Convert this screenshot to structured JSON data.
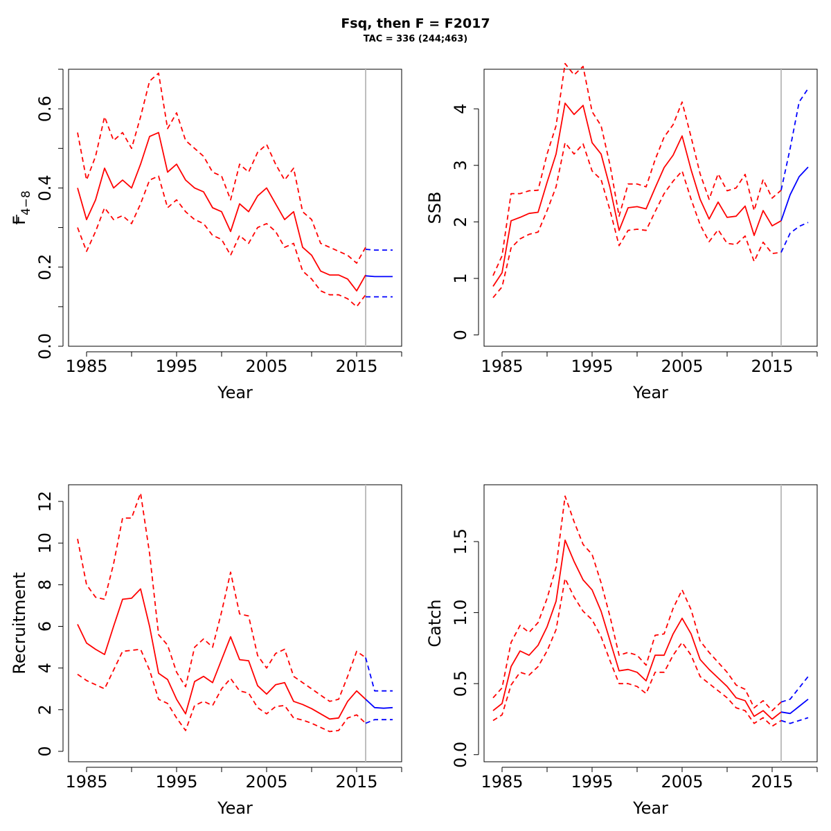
{
  "title": "Fsq, then F = F2017",
  "subtitle": "TAC = 336 (244;463)",
  "colors": {
    "historic": "#ff0000",
    "forecast": "#0000ff",
    "divider": "#bebebe",
    "axis": "#000000"
  },
  "chart_data": [
    {
      "type": "line",
      "id": "fbar",
      "ylabel": "F",
      "ylabel_sub": "4−8",
      "ylabel_bar": true,
      "xlabel": "Year",
      "xlim": [
        1983,
        2020
      ],
      "ylim": [
        0,
        0.7
      ],
      "xticks": [
        1985,
        1995,
        2005,
        2015
      ],
      "xticks_minor": [
        1990,
        2000,
        2010,
        2020
      ],
      "yticks": [
        0.0,
        0.2,
        0.4,
        0.6
      ],
      "yticks_minor": [
        0.1,
        0.3,
        0.5,
        0.7
      ],
      "ytick_labels": [
        "0.0",
        "0.2",
        "0.4",
        "0.6"
      ],
      "divider_x": 2016,
      "x": [
        1984,
        1985,
        1986,
        1987,
        1988,
        1989,
        1990,
        1991,
        1992,
        1993,
        1994,
        1995,
        1996,
        1997,
        1998,
        1999,
        2000,
        2001,
        2002,
        2003,
        2004,
        2005,
        2006,
        2007,
        2008,
        2009,
        2010,
        2011,
        2012,
        2013,
        2014,
        2015,
        2016
      ],
      "series": [
        {
          "line": "solid",
          "color": "historic",
          "values": [
            0.4,
            0.32,
            0.37,
            0.45,
            0.4,
            0.42,
            0.4,
            0.46,
            0.53,
            0.54,
            0.44,
            0.46,
            0.42,
            0.4,
            0.39,
            0.35,
            0.34,
            0.29,
            0.36,
            0.34,
            0.38,
            0.4,
            0.36,
            0.32,
            0.34,
            0.25,
            0.23,
            0.19,
            0.18,
            0.18,
            0.17,
            0.14,
            0.18
          ]
        },
        {
          "line": "dashed",
          "color": "historic",
          "values": [
            0.54,
            0.42,
            0.48,
            0.58,
            0.52,
            0.54,
            0.5,
            0.58,
            0.67,
            0.69,
            0.55,
            0.59,
            0.52,
            0.5,
            0.48,
            0.44,
            0.43,
            0.37,
            0.46,
            0.44,
            0.49,
            0.51,
            0.46,
            0.42,
            0.45,
            0.34,
            0.32,
            0.26,
            0.25,
            0.24,
            0.23,
            0.21,
            0.25
          ]
        },
        {
          "line": "dashed",
          "color": "historic",
          "values": [
            0.3,
            0.24,
            0.29,
            0.35,
            0.32,
            0.33,
            0.31,
            0.36,
            0.42,
            0.43,
            0.35,
            0.37,
            0.34,
            0.32,
            0.31,
            0.28,
            0.27,
            0.23,
            0.28,
            0.26,
            0.3,
            0.31,
            0.29,
            0.25,
            0.26,
            0.19,
            0.17,
            0.14,
            0.13,
            0.13,
            0.12,
            0.1,
            0.13
          ]
        }
      ],
      "forecast_x": [
        2016,
        2017,
        2018,
        2019
      ],
      "forecast": [
        {
          "line": "solid",
          "color": "forecast",
          "values": [
            0.178,
            0.176,
            0.176,
            0.176
          ]
        },
        {
          "line": "dashed",
          "color": "forecast",
          "values": [
            0.245,
            0.243,
            0.243,
            0.243
          ]
        },
        {
          "line": "dashed",
          "color": "forecast",
          "values": [
            0.125,
            0.125,
            0.125,
            0.125
          ]
        }
      ]
    },
    {
      "type": "line",
      "id": "ssb",
      "ylabel": "SSB",
      "xlabel": "Year",
      "xlim": [
        1983,
        2020
      ],
      "ylim": [
        -0.2,
        4.7
      ],
      "xticks": [
        1985,
        1995,
        2005,
        2015
      ],
      "xticks_minor": [
        1990,
        2000,
        2010,
        2020
      ],
      "yticks": [
        0,
        1,
        2,
        3,
        4
      ],
      "yticks_minor": [],
      "ytick_labels": [
        "0",
        "1",
        "2",
        "3",
        "4"
      ],
      "divider_x": 2016,
      "x": [
        1984,
        1985,
        1986,
        1987,
        1988,
        1989,
        1990,
        1991,
        1992,
        1993,
        1994,
        1995,
        1996,
        1997,
        1998,
        1999,
        2000,
        2001,
        2002,
        2003,
        2004,
        2005,
        2006,
        2007,
        2008,
        2009,
        2010,
        2011,
        2012,
        2013,
        2014,
        2015,
        2016
      ],
      "series": [
        {
          "line": "solid",
          "color": "historic",
          "values": [
            0.86,
            1.1,
            2.02,
            2.08,
            2.15,
            2.17,
            2.7,
            3.2,
            4.1,
            3.9,
            4.06,
            3.4,
            3.2,
            2.6,
            1.85,
            2.25,
            2.27,
            2.23,
            2.6,
            2.96,
            3.18,
            3.52,
            2.92,
            2.4,
            2.05,
            2.35,
            2.08,
            2.1,
            2.28,
            1.76,
            2.2,
            1.93,
            2.02
          ]
        },
        {
          "line": "dashed",
          "color": "historic",
          "values": [
            1.05,
            1.4,
            2.5,
            2.5,
            2.55,
            2.56,
            3.2,
            3.7,
            4.8,
            4.6,
            4.75,
            3.95,
            3.7,
            3.0,
            2.1,
            2.67,
            2.67,
            2.62,
            3.1,
            3.5,
            3.72,
            4.12,
            3.5,
            2.85,
            2.4,
            2.85,
            2.55,
            2.6,
            2.84,
            2.2,
            2.75,
            2.42,
            2.56
          ]
        },
        {
          "line": "dashed",
          "color": "historic",
          "values": [
            0.66,
            0.85,
            1.54,
            1.7,
            1.78,
            1.82,
            2.2,
            2.62,
            3.4,
            3.2,
            3.38,
            2.9,
            2.75,
            2.2,
            1.58,
            1.85,
            1.87,
            1.85,
            2.18,
            2.5,
            2.72,
            2.9,
            2.4,
            1.95,
            1.65,
            1.86,
            1.62,
            1.6,
            1.75,
            1.3,
            1.64,
            1.44,
            1.46
          ]
        }
      ],
      "forecast_x": [
        2016,
        2017,
        2018,
        2019
      ],
      "forecast": [
        {
          "line": "solid",
          "color": "forecast",
          "values": [
            2.02,
            2.48,
            2.8,
            2.97
          ]
        },
        {
          "line": "dashed",
          "color": "forecast",
          "values": [
            2.56,
            3.3,
            4.12,
            4.36
          ]
        },
        {
          "line": "dashed",
          "color": "forecast",
          "values": [
            1.46,
            1.8,
            1.92,
            1.99
          ]
        }
      ]
    },
    {
      "type": "line",
      "id": "recruitment",
      "ylabel": "Recruitment",
      "xlabel": "Year",
      "xlim": [
        1983,
        2020
      ],
      "ylim": [
        -0.5,
        12.8
      ],
      "xticks": [
        1985,
        1995,
        2005,
        2015
      ],
      "xticks_minor": [
        1990,
        2000,
        2010,
        2020
      ],
      "yticks": [
        0,
        2,
        4,
        6,
        8,
        10,
        12
      ],
      "yticks_minor": [],
      "ytick_labels": [
        "0",
        "2",
        "4",
        "6",
        "8",
        "10",
        "12"
      ],
      "divider_x": 2016,
      "x": [
        1984,
        1985,
        1986,
        1987,
        1988,
        1989,
        1990,
        1991,
        1992,
        1993,
        1994,
        1995,
        1996,
        1997,
        1998,
        1999,
        2000,
        2001,
        2002,
        2003,
        2004,
        2005,
        2006,
        2007,
        2008,
        2009,
        2010,
        2011,
        2012,
        2013,
        2014,
        2015,
        2016
      ],
      "series": [
        {
          "line": "solid",
          "color": "historic",
          "values": [
            6.1,
            5.2,
            4.9,
            4.65,
            6.0,
            7.3,
            7.35,
            7.8,
            6.0,
            3.75,
            3.45,
            2.5,
            1.8,
            3.35,
            3.6,
            3.3,
            4.4,
            5.5,
            4.4,
            4.35,
            3.15,
            2.75,
            3.2,
            3.3,
            2.4,
            2.25,
            2.05,
            1.8,
            1.55,
            1.6,
            2.4,
            2.9,
            2.5
          ]
        },
        {
          "line": "dashed",
          "color": "historic",
          "values": [
            10.2,
            8.0,
            7.4,
            7.3,
            9.0,
            11.2,
            11.2,
            12.4,
            9.5,
            5.6,
            5.1,
            3.8,
            3.1,
            5.0,
            5.4,
            5.0,
            6.7,
            8.6,
            6.6,
            6.5,
            4.6,
            4.0,
            4.7,
            4.9,
            3.6,
            3.3,
            3.0,
            2.7,
            2.4,
            2.5,
            3.6,
            4.8,
            4.5
          ]
        },
        {
          "line": "dashed",
          "color": "historic",
          "values": [
            3.7,
            3.4,
            3.2,
            3.0,
            3.9,
            4.8,
            4.85,
            4.9,
            3.9,
            2.5,
            2.3,
            1.6,
            1.0,
            2.2,
            2.4,
            2.2,
            3.0,
            3.5,
            2.9,
            2.8,
            2.1,
            1.8,
            2.15,
            2.2,
            1.6,
            1.5,
            1.35,
            1.15,
            0.95,
            1.0,
            1.6,
            1.75,
            1.35
          ]
        }
      ],
      "forecast_x": [
        2016,
        2017,
        2018,
        2019
      ],
      "forecast": [
        {
          "line": "solid",
          "color": "forecast",
          "values": [
            2.5,
            2.1,
            2.07,
            2.1
          ]
        },
        {
          "line": "dashed",
          "color": "forecast",
          "values": [
            4.5,
            2.9,
            2.9,
            2.9
          ]
        },
        {
          "line": "dashed",
          "color": "forecast",
          "values": [
            1.35,
            1.52,
            1.52,
            1.52
          ]
        }
      ]
    },
    {
      "type": "line",
      "id": "catch",
      "ylabel": "Catch",
      "xlabel": "Year",
      "xlim": [
        1983,
        2020
      ],
      "ylim": [
        -0.05,
        1.9
      ],
      "xticks": [
        1985,
        1995,
        2005,
        2015
      ],
      "xticks_minor": [
        1990,
        2000,
        2010,
        2020
      ],
      "yticks": [
        0.0,
        0.5,
        1.0,
        1.5
      ],
      "yticks_minor": [],
      "ytick_labels": [
        "0.0",
        "0.5",
        "1.0",
        "1.5"
      ],
      "divider_x": 2016,
      "x": [
        1984,
        1985,
        1986,
        1987,
        1988,
        1989,
        1990,
        1991,
        1992,
        1993,
        1994,
        1995,
        1996,
        1997,
        1998,
        1999,
        2000,
        2001,
        2002,
        2003,
        2004,
        2005,
        2006,
        2007,
        2008,
        2009,
        2010,
        2011,
        2012,
        2013,
        2014,
        2015,
        2016
      ],
      "series": [
        {
          "line": "solid",
          "color": "historic",
          "values": [
            0.31,
            0.36,
            0.62,
            0.73,
            0.7,
            0.77,
            0.9,
            1.08,
            1.51,
            1.36,
            1.23,
            1.16,
            1.01,
            0.8,
            0.59,
            0.6,
            0.58,
            0.52,
            0.7,
            0.7,
            0.85,
            0.96,
            0.85,
            0.67,
            0.6,
            0.54,
            0.48,
            0.4,
            0.38,
            0.27,
            0.31,
            0.25,
            0.3
          ]
        },
        {
          "line": "dashed",
          "color": "historic",
          "values": [
            0.4,
            0.47,
            0.79,
            0.91,
            0.86,
            0.93,
            1.1,
            1.32,
            1.82,
            1.64,
            1.48,
            1.41,
            1.21,
            0.97,
            0.7,
            0.72,
            0.7,
            0.63,
            0.84,
            0.85,
            1.03,
            1.16,
            1.02,
            0.8,
            0.72,
            0.65,
            0.58,
            0.49,
            0.46,
            0.33,
            0.38,
            0.31,
            0.37
          ]
        },
        {
          "line": "dashed",
          "color": "historic",
          "values": [
            0.24,
            0.28,
            0.49,
            0.58,
            0.56,
            0.62,
            0.73,
            0.88,
            1.24,
            1.11,
            1.01,
            0.95,
            0.83,
            0.66,
            0.5,
            0.5,
            0.48,
            0.43,
            0.58,
            0.58,
            0.7,
            0.79,
            0.7,
            0.55,
            0.5,
            0.45,
            0.4,
            0.33,
            0.31,
            0.22,
            0.26,
            0.2,
            0.24
          ]
        }
      ],
      "forecast_x": [
        2016,
        2017,
        2018,
        2019
      ],
      "forecast": [
        {
          "line": "solid",
          "color": "forecast",
          "values": [
            0.3,
            0.29,
            0.34,
            0.39
          ]
        },
        {
          "line": "dashed",
          "color": "forecast",
          "values": [
            0.37,
            0.39,
            0.47,
            0.55
          ]
        },
        {
          "line": "dashed",
          "color": "forecast",
          "values": [
            0.24,
            0.22,
            0.24,
            0.26
          ]
        }
      ]
    }
  ]
}
